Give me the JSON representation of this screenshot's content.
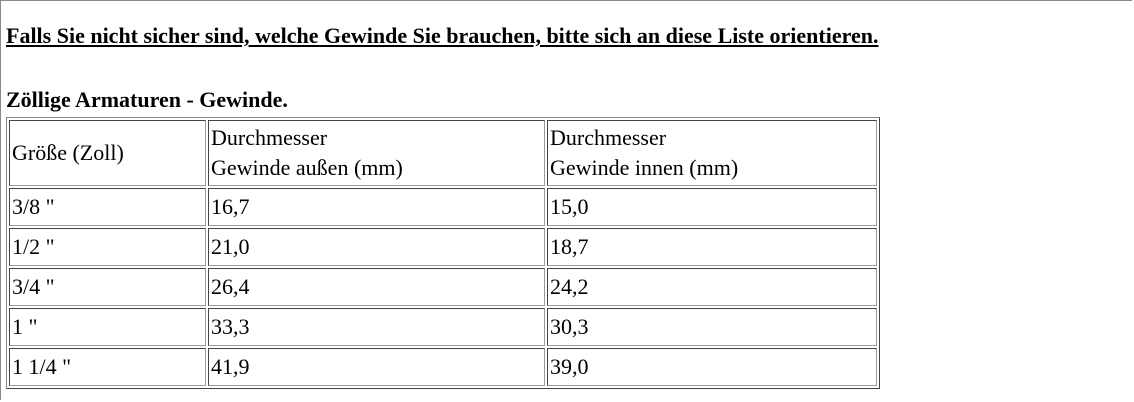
{
  "heading": "Falls Sie nicht sicher sind, welche Gewinde Sie brauchen, bitte sich an diese Liste orientieren.",
  "subheading": "Zöllige Armaturen - Gewinde.",
  "table": {
    "header": [
      [
        "Größe (Zoll)"
      ],
      [
        "Durchmesser",
        "Gewinde außen (mm)"
      ],
      [
        "Durchmesser",
        "Gewinde innen (mm)"
      ]
    ],
    "rows": [
      [
        "3/8 \"",
        "16,7",
        "15,0"
      ],
      [
        "1/2 \"",
        "21,0",
        "18,7"
      ],
      [
        "3/4 \"",
        "26,4",
        "24,2"
      ],
      [
        "1 \"",
        "33,3",
        "30,3"
      ],
      [
        "1 1/4 \"",
        "41,9",
        "39,0"
      ]
    ]
  }
}
